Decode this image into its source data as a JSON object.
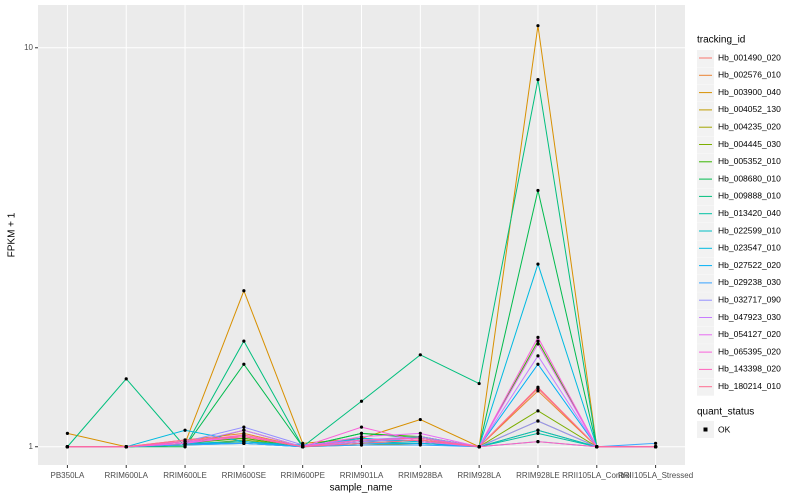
{
  "chart_data": {
    "type": "line",
    "x_label": "sample_name",
    "y_label": "FPKM + 1",
    "log_scale": true,
    "grid": true,
    "legend_title": "tracking_id",
    "legend_position": "right",
    "point_legend": {
      "title": "quant_status",
      "label": "OK",
      "color": "#000000"
    },
    "categories": [
      "PB350LA",
      "RRIM600LA",
      "RRIM600LE",
      "RRIM600SE",
      "RRIM600PE",
      "RRIM901LA",
      "RRIM928BA",
      "RRIM928LA",
      "RRIM928LE",
      "RRII105LA_Control",
      "RRII105LA_Stressed"
    ],
    "ylim": [
      0.9,
      12.8
    ],
    "yticks": [
      1,
      10
    ],
    "series": [
      {
        "name": "Hb_001490_020",
        "color": "#F8766D",
        "values": [
          1,
          1,
          1.03,
          1.05,
          1,
          1.02,
          1.04,
          1,
          1.4,
          1,
          1
        ]
      },
      {
        "name": "Hb_002576_010",
        "color": "#EA8331",
        "values": [
          1,
          1,
          1.04,
          1.08,
          1,
          1.03,
          1.06,
          1,
          1.38,
          1,
          1
        ]
      },
      {
        "name": "Hb_003900_040",
        "color": "#D89000",
        "values": [
          1.08,
          1,
          1.02,
          2.46,
          1.02,
          1.05,
          1.17,
          1,
          11.36,
          1,
          1
        ]
      },
      {
        "name": "Hb_004052_130",
        "color": "#C09B00",
        "values": [
          1,
          1,
          1.01,
          1.1,
          1,
          1.02,
          1.04,
          1,
          1.1,
          1,
          1
        ]
      },
      {
        "name": "Hb_004235_020",
        "color": "#A3A500",
        "values": [
          1,
          1,
          1.01,
          1.03,
          1,
          1.01,
          1.02,
          1,
          1.16,
          1,
          1
        ]
      },
      {
        "name": "Hb_004445_030",
        "color": "#7CAE00",
        "values": [
          1,
          1,
          1.01,
          1.04,
          1,
          1.05,
          1.03,
          1,
          1.23,
          1,
          1
        ]
      },
      {
        "name": "Hb_005352_010",
        "color": "#39B600",
        "values": [
          1,
          1,
          1.02,
          1.05,
          1,
          1.08,
          1.06,
          1,
          1.84,
          1,
          1
        ]
      },
      {
        "name": "Hb_008680_010",
        "color": "#00BB4E",
        "values": [
          1,
          1,
          1,
          1.61,
          1,
          1.08,
          1.05,
          1,
          4.39,
          1,
          1
        ]
      },
      {
        "name": "Hb_009888_010",
        "color": "#00BF7D",
        "values": [
          1,
          1.48,
          1,
          1.84,
          1,
          1.3,
          1.7,
          1.44,
          8.32,
          1,
          1
        ]
      },
      {
        "name": "Hb_013420_040",
        "color": "#00C1A3",
        "values": [
          1,
          1,
          1.01,
          1.02,
          1,
          1.03,
          1.02,
          1,
          1.08,
          1,
          1
        ]
      },
      {
        "name": "Hb_022599_010",
        "color": "#00BFC4",
        "values": [
          1,
          1,
          1.02,
          1.03,
          1.01,
          1.04,
          1.03,
          1,
          1.1,
          1,
          1
        ]
      },
      {
        "name": "Hb_023547_010",
        "color": "#00BAE0",
        "values": [
          1,
          1,
          1.1,
          1.03,
          1,
          1.05,
          1.03,
          1,
          2.87,
          1,
          1
        ]
      },
      {
        "name": "Hb_027522_020",
        "color": "#00B0F6",
        "values": [
          1,
          1,
          1.02,
          1.02,
          1,
          1.02,
          1.02,
          1,
          1.61,
          1,
          1
        ]
      },
      {
        "name": "Hb_029238_030",
        "color": "#35A2FF",
        "values": [
          1,
          1,
          1.01,
          1.02,
          1,
          1.01,
          1.01,
          1,
          1.03,
          1,
          1.02
        ]
      },
      {
        "name": "Hb_032717_090",
        "color": "#9590FF",
        "values": [
          1,
          1,
          1.03,
          1.12,
          1.01,
          1.04,
          1.06,
          1,
          1.16,
          1,
          1
        ]
      },
      {
        "name": "Hb_047923_030",
        "color": "#C77CFF",
        "values": [
          1,
          1,
          1.02,
          1.1,
          1,
          1.03,
          1.05,
          1,
          1.69,
          1,
          1
        ]
      },
      {
        "name": "Hb_054127_020",
        "color": "#E76BF3",
        "values": [
          1,
          1,
          1.02,
          1.07,
          1,
          1.06,
          1.08,
          1,
          1.81,
          1,
          1
        ]
      },
      {
        "name": "Hb_065395_020",
        "color": "#FA62DB",
        "values": [
          1,
          1,
          1.02,
          1.06,
          1,
          1.12,
          1.03,
          1,
          1.88,
          1,
          1
        ]
      },
      {
        "name": "Hb_143398_020",
        "color": "#FF62BC",
        "values": [
          1,
          1,
          1.03,
          1.07,
          1,
          1.04,
          1.05,
          1,
          1.03,
          1,
          1
        ]
      },
      {
        "name": "Hb_180214_010",
        "color": "#FF6C91",
        "values": [
          1,
          1,
          1.04,
          1.06,
          1,
          1.02,
          1.04,
          1,
          1.41,
          1,
          1
        ]
      }
    ]
  }
}
